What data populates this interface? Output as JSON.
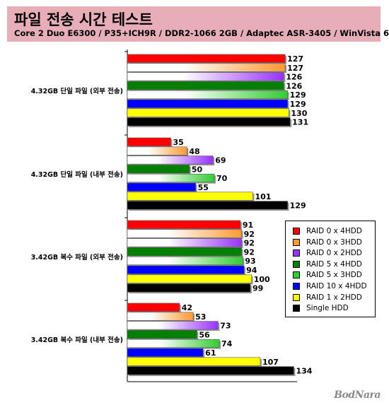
{
  "header": {
    "title": "파일 전송 시간 테스트",
    "subtitle": "Core 2 Duo E6300 / P35+ICH9R / DDR2-1066 2GB / Adaptec ASR-3405 / WinVista 64bit"
  },
  "watermark": "BodNara",
  "chart_data": {
    "type": "bar",
    "orientation": "horizontal",
    "categories": [
      "4.32GB 단일 파일 (외부 전송)",
      "4.32GB 단일 파일 (내부 전송)",
      "3.42GB 복수 파일 (외부 전송)",
      "3.42GB 복수 파일 (내부 전송)"
    ],
    "series": [
      {
        "name": "RAID 0 x 4HDD",
        "color": "#ff0000",
        "values": [
          127,
          35,
          91,
          42
        ]
      },
      {
        "name": "RAID 0 x 3HDD",
        "color": "#ff9933",
        "values": [
          127,
          48,
          92,
          53
        ]
      },
      {
        "name": "RAID 0 x 2HDD",
        "color": "#9933ff",
        "values": [
          126,
          69,
          92,
          73
        ]
      },
      {
        "name": "RAID 5 x 4HDD",
        "color": "#008000",
        "values": [
          126,
          50,
          92,
          56
        ]
      },
      {
        "name": "RAID 5 x 3HDD",
        "color": "#33cc33",
        "values": [
          129,
          70,
          93,
          74
        ]
      },
      {
        "name": "RAID 10 x 4HDD",
        "color": "#0000ff",
        "values": [
          129,
          55,
          94,
          61
        ]
      },
      {
        "name": "RAID 1 x 2HDD",
        "color": "#ffff00",
        "values": [
          130,
          101,
          100,
          107
        ]
      },
      {
        "name": "Single HDD",
        "color": "#000000",
        "values": [
          131,
          129,
          99,
          134
        ]
      }
    ],
    "xlim": [
      0,
      140
    ],
    "grid": false,
    "legend_position": "right"
  }
}
